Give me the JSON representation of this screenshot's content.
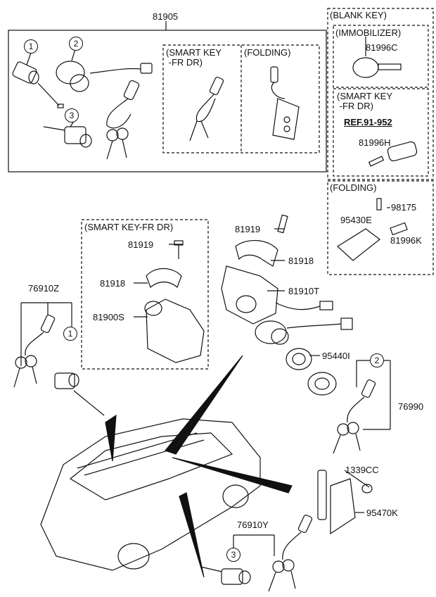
{
  "parts": {
    "top_assembly": "81905",
    "blank_key_title": "(BLANK KEY)",
    "immobilizer_title": "(IMMOBILIZER)",
    "immobilizer_key": "81996C",
    "smart_key_title": "(SMART KEY\n -FR DR)",
    "ref_label": "REF.91-952",
    "smart_blank": "81996H",
    "folding_title": "(FOLDING)",
    "folding_blank_a": "98175",
    "folding_blank_b": "95430E",
    "folding_blank_c": "81996K",
    "inner_smart_title": "(SMART KEY\n -FR DR)",
    "inner_folding_title": "(FOLDING)",
    "center_box_title": "(SMART KEY-FR DR)",
    "cb_bolt": "81919",
    "cb_bracket": "81918",
    "cb_lock": "81900S",
    "r_bolt": "81919",
    "r_bracket": "81918",
    "r_lock": "81910T",
    "door_key_set": "76910Z",
    "immob_module": "95440I",
    "rear_key_set": "76990",
    "nut": "1339CC",
    "antenna": "95470K",
    "tailgate_set": "76910Y"
  },
  "callouts": [
    "1",
    "2",
    "3",
    "1",
    "2",
    "3"
  ]
}
